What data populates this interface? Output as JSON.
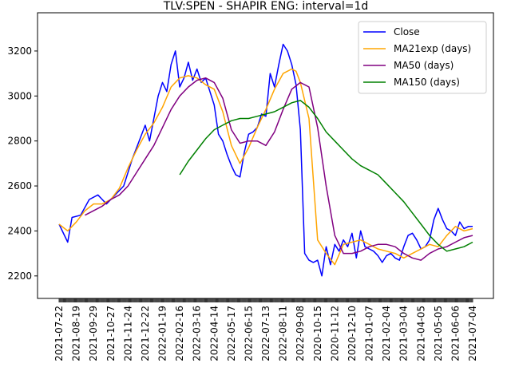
{
  "chart_data": {
    "type": "line",
    "title": "TLV:SPEN - SHAPIR       ENG: interval=1d",
    "xlabel": "",
    "ylabel": "",
    "ylim": [
      2100,
      3370
    ],
    "yticks": [
      2200,
      2400,
      2600,
      2800,
      3000,
      3200
    ],
    "grid": false,
    "legend_position": "top-right",
    "x_tick_labels": [
      "2021-07-22",
      "2021-08-19",
      "2021-09-29",
      "2021-10-27",
      "2021-11-24",
      "2021-12-22",
      "2022-01-19",
      "2022-02-16",
      "2022-03-16",
      "2022-04-14",
      "2022-05-17",
      "2022-06-15",
      "2022-07-13",
      "2022-08-11",
      "2022-09-08",
      "2020-10-15",
      "2020-11-12",
      "2020-12-10",
      "2021-01-07",
      "2021-02-04",
      "2021-03-04",
      "2021-04-05",
      "2021-05-05",
      "2021-06-06",
      "2021-07-04"
    ],
    "x_tick_sessions": [
      0,
      20,
      40,
      60,
      80,
      100,
      120,
      140,
      160,
      180,
      200,
      220,
      240,
      260,
      280,
      300,
      320,
      340,
      360,
      380,
      400,
      420,
      440,
      460,
      480
    ],
    "series": [
      {
        "name": "Close",
        "color": "#0000ff",
        "x": [
          0,
          10,
          15,
          25,
          35,
          45,
          55,
          65,
          75,
          85,
          95,
          100,
          105,
          110,
          115,
          120,
          125,
          130,
          135,
          140,
          145,
          150,
          155,
          160,
          165,
          170,
          175,
          180,
          185,
          190,
          195,
          200,
          205,
          210,
          215,
          220,
          225,
          230,
          235,
          240,
          245,
          250,
          255,
          260,
          265,
          270,
          275,
          280,
          285,
          290,
          295,
          300,
          305,
          310,
          315,
          320,
          325,
          330,
          335,
          340,
          345,
          350,
          355,
          360,
          365,
          370,
          375,
          380,
          385,
          390,
          395,
          400,
          405,
          410,
          415,
          420,
          425,
          430,
          435,
          440,
          445,
          450,
          455,
          460,
          465,
          470,
          475,
          480
        ],
        "y": [
          2430,
          2350,
          2460,
          2470,
          2540,
          2560,
          2520,
          2560,
          2600,
          2720,
          2820,
          2870,
          2800,
          2900,
          3000,
          3060,
          3020,
          3140,
          3200,
          3040,
          3080,
          3150,
          3070,
          3120,
          3060,
          3080,
          3020,
          2960,
          2830,
          2800,
          2740,
          2690,
          2650,
          2640,
          2750,
          2830,
          2840,
          2860,
          2920,
          2910,
          3100,
          3040,
          3140,
          3230,
          3200,
          3140,
          3050,
          2850,
          2300,
          2270,
          2260,
          2270,
          2200,
          2330,
          2250,
          2340,
          2310,
          2360,
          2330,
          2390,
          2280,
          2400,
          2330,
          2320,
          2310,
          2290,
          2260,
          2290,
          2300,
          2280,
          2270,
          2330,
          2380,
          2390,
          2360,
          2320,
          2330,
          2360,
          2450,
          2500,
          2450,
          2410,
          2400,
          2380,
          2440,
          2410,
          2420,
          2420
        ]
      },
      {
        "name": "MA21exp (days)",
        "color": "#ffa500",
        "x": [
          0,
          10,
          20,
          30,
          40,
          50,
          60,
          70,
          80,
          90,
          100,
          110,
          120,
          130,
          140,
          150,
          155,
          160,
          170,
          180,
          190,
          200,
          210,
          220,
          230,
          240,
          250,
          260,
          270,
          275,
          280,
          290,
          300,
          310,
          320,
          330,
          340,
          350,
          360,
          370,
          380,
          390,
          400,
          410,
          420,
          430,
          440,
          450,
          460,
          470,
          480
        ],
        "y": [
          2430,
          2400,
          2440,
          2490,
          2520,
          2520,
          2540,
          2590,
          2680,
          2760,
          2830,
          2880,
          2950,
          3040,
          3080,
          3090,
          3085,
          3080,
          3050,
          3030,
          2930,
          2780,
          2700,
          2770,
          2860,
          2940,
          3030,
          3100,
          3120,
          3110,
          3060,
          2900,
          2360,
          2300,
          2250,
          2340,
          2350,
          2360,
          2340,
          2320,
          2310,
          2300,
          2280,
          2300,
          2320,
          2340,
          2330,
          2380,
          2420,
          2400,
          2410
        ]
      },
      {
        "name": "MA50 (days)",
        "color": "#800080",
        "x": [
          30,
          40,
          50,
          60,
          70,
          80,
          90,
          100,
          110,
          120,
          130,
          140,
          150,
          160,
          170,
          180,
          190,
          200,
          210,
          220,
          230,
          240,
          250,
          260,
          270,
          280,
          290,
          300,
          310,
          320,
          330,
          340,
          350,
          360,
          370,
          380,
          390,
          400,
          410,
          420,
          430,
          440,
          450,
          460,
          470,
          480
        ],
        "y": [
          2470,
          2490,
          2510,
          2540,
          2560,
          2600,
          2660,
          2720,
          2780,
          2860,
          2940,
          3000,
          3040,
          3070,
          3080,
          3060,
          2990,
          2850,
          2790,
          2800,
          2800,
          2780,
          2840,
          2940,
          3030,
          3060,
          3040,
          2860,
          2600,
          2380,
          2300,
          2300,
          2310,
          2330,
          2340,
          2340,
          2330,
          2300,
          2280,
          2270,
          2300,
          2320,
          2330,
          2350,
          2370,
          2380
        ]
      },
      {
        "name": "MA150 (days)",
        "color": "#008000",
        "x": [
          140,
          150,
          160,
          170,
          180,
          190,
          200,
          210,
          220,
          230,
          240,
          250,
          260,
          270,
          280,
          290,
          300,
          310,
          320,
          330,
          340,
          350,
          360,
          370,
          380,
          390,
          400,
          410,
          420,
          430,
          440,
          450,
          460,
          470,
          480
        ],
        "y": [
          2650,
          2710,
          2760,
          2810,
          2850,
          2870,
          2890,
          2900,
          2900,
          2910,
          2920,
          2930,
          2950,
          2970,
          2980,
          2950,
          2900,
          2840,
          2800,
          2760,
          2720,
          2690,
          2670,
          2650,
          2610,
          2570,
          2530,
          2480,
          2430,
          2380,
          2340,
          2310,
          2320,
          2330,
          2350
        ]
      }
    ]
  }
}
